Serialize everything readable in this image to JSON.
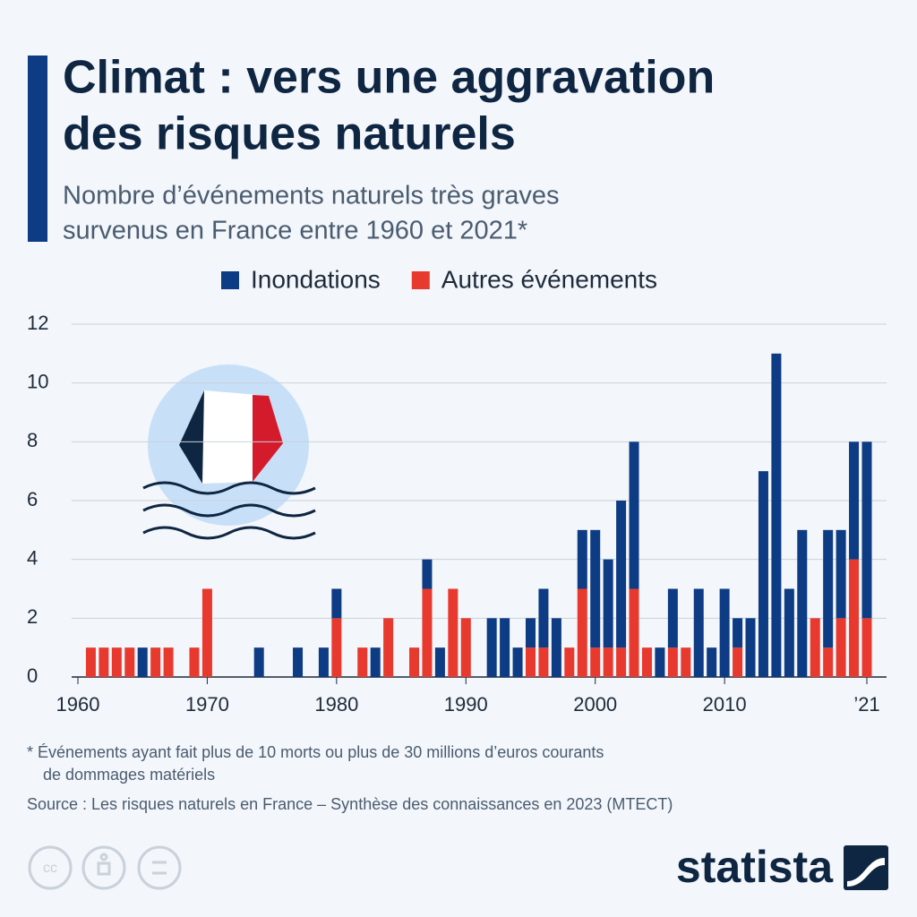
{
  "chart_data": {
    "type": "stacked_bar",
    "title": [
      "Climat : vers une aggravation",
      "des risques naturels"
    ],
    "subtitle": [
      "Nombre d’événements naturels très graves",
      "survenus en France entre 1960 et 2021*"
    ],
    "footnote": [
      "* Événements ayant fait plus de 10 morts ou plus de 30 millions d’euros courants",
      "de dommages matériels"
    ],
    "source": "Source : Les risques naturels en France – Synthèse des connaissances en 2023 (MTECT)",
    "brand": "statista",
    "x": [
      1961,
      1962,
      1963,
      1964,
      1965,
      1966,
      1967,
      1968,
      1969,
      1970,
      1971,
      1972,
      1973,
      1974,
      1975,
      1976,
      1977,
      1978,
      1979,
      1980,
      1981,
      1982,
      1983,
      1984,
      1985,
      1986,
      1987,
      1988,
      1989,
      1990,
      1991,
      1992,
      1993,
      1994,
      1995,
      1996,
      1997,
      1998,
      1999,
      2000,
      2001,
      2002,
      2003,
      2004,
      2005,
      2006,
      2007,
      2008,
      2009,
      2010,
      2011,
      2012,
      2013,
      2014,
      2015,
      2016,
      2017,
      2018,
      2019,
      2020,
      2021
    ],
    "series": [
      {
        "name": "Inondations",
        "color": "#0d3b84",
        "values": [
          0,
          0,
          0,
          0,
          1,
          0,
          0,
          0,
          0,
          0,
          0,
          0,
          0,
          1,
          0,
          0,
          1,
          0,
          1,
          1,
          0,
          0,
          1,
          0,
          0,
          0,
          1,
          1,
          0,
          0,
          0,
          2,
          2,
          1,
          1,
          2,
          2,
          0,
          2,
          4,
          3,
          5,
          5,
          0,
          1,
          2,
          0,
          3,
          1,
          3,
          1,
          2,
          7,
          11,
          3,
          5,
          0,
          4,
          3,
          4,
          6
        ]
      },
      {
        "name": "Autres événements",
        "color": "#e8392f",
        "values": [
          1,
          1,
          1,
          1,
          0,
          1,
          1,
          0,
          1,
          3,
          0,
          0,
          0,
          0,
          0,
          0,
          0,
          0,
          0,
          2,
          0,
          1,
          0,
          2,
          0,
          1,
          3,
          0,
          3,
          2,
          0,
          0,
          0,
          0,
          1,
          1,
          0,
          1,
          3,
          1,
          1,
          1,
          3,
          1,
          0,
          1,
          1,
          0,
          0,
          0,
          1,
          0,
          0,
          0,
          0,
          0,
          2,
          1,
          2,
          4,
          2
        ]
      }
    ],
    "xlim": [
      1960,
      2021
    ],
    "xticks": [
      1960,
      1970,
      1980,
      1990,
      2000,
      2010,
      {
        "value": 2021,
        "label": "’21"
      }
    ],
    "ylim": [
      0,
      12
    ],
    "yticks": [
      0,
      2,
      4,
      6,
      8,
      10,
      12
    ],
    "grid": true
  }
}
